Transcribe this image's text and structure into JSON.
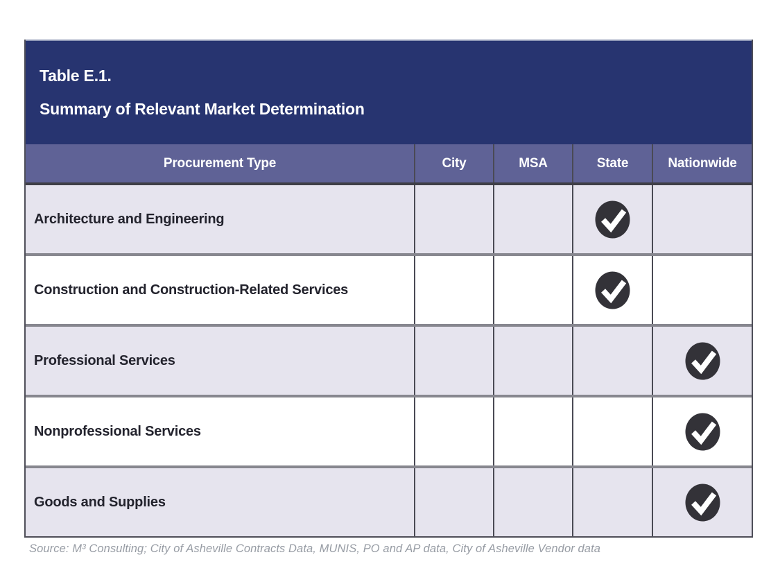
{
  "table": {
    "title_line1": "Table E.1.",
    "title_line2": "Summary of Relevant Market Determination",
    "columns": [
      "Procurement Type",
      "City",
      "MSA",
      "State",
      "Nationwide"
    ],
    "rows": [
      {
        "label": "Architecture and Engineering",
        "marks": [
          false,
          false,
          true,
          false
        ]
      },
      {
        "label": "Construction and Construction-Related Services",
        "marks": [
          false,
          false,
          true,
          false
        ]
      },
      {
        "label": "Professional Services",
        "marks": [
          false,
          false,
          false,
          true
        ]
      },
      {
        "label": "Nonprofessional Services",
        "marks": [
          false,
          false,
          false,
          true
        ]
      },
      {
        "label": "Goods and Supplies",
        "marks": [
          false,
          false,
          false,
          true
        ]
      }
    ],
    "source": "Source: M³ Consulting; City of Asheville Contracts Data, MUNIS, PO and AP data, City of Asheville Vendor data"
  },
  "icons": {
    "check_badge": "check-badge-icon"
  },
  "colors": {
    "title_bar": "#273470",
    "header_bar": "#5f6296",
    "shaded_row": "#e6e4ee",
    "plain_row": "#ffffff",
    "grid_line": "#4a4a54",
    "row_separator": "#87878f",
    "check_badge": "#333238",
    "source_text": "#979ca4"
  },
  "chart_data": {
    "type": "table",
    "title": "Table E.1. Summary of Relevant Market Determination",
    "columns": [
      "Procurement Type",
      "City",
      "MSA",
      "State",
      "Nationwide"
    ],
    "rows": [
      [
        "Architecture and Engineering",
        "",
        "",
        "✓",
        ""
      ],
      [
        "Construction and Construction-Related Services",
        "",
        "",
        "✓",
        ""
      ],
      [
        "Professional Services",
        "",
        "",
        "",
        "✓"
      ],
      [
        "Nonprofessional Services",
        "",
        "",
        "",
        "✓"
      ],
      [
        "Goods and Supplies",
        "",
        "",
        "",
        "✓"
      ]
    ]
  }
}
